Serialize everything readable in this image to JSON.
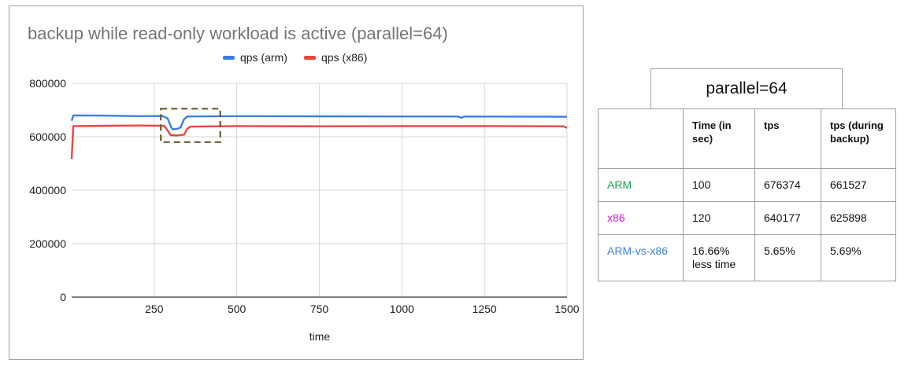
{
  "chart_data": {
    "type": "line",
    "title": "backup while read-only workload is active (parallel=64)",
    "xlabel": "time",
    "ylabel": "",
    "xlim": [
      0,
      1500
    ],
    "ylim": [
      0,
      800000
    ],
    "x_ticks": [
      250,
      500,
      750,
      1000,
      1250,
      1500
    ],
    "y_ticks": [
      0,
      200000,
      400000,
      600000,
      800000
    ],
    "x_tick_labels": [
      "250",
      "500",
      "750",
      "1000",
      "1250",
      "1500"
    ],
    "y_tick_labels": [
      "0",
      "200000",
      "400000",
      "600000",
      "800000"
    ],
    "grid": true,
    "legend": "top-center",
    "series": [
      {
        "name": "qps (arm)",
        "color": "#3b7fe0",
        "points": [
          [
            0,
            660000
          ],
          [
            5,
            680000
          ],
          [
            100,
            679000
          ],
          [
            200,
            677000
          ],
          [
            275,
            677500
          ],
          [
            285,
            672000
          ],
          [
            290,
            670000
          ],
          [
            300,
            640000
          ],
          [
            305,
            628000
          ],
          [
            320,
            630000
          ],
          [
            330,
            635000
          ],
          [
            340,
            665000
          ],
          [
            350,
            676000
          ],
          [
            500,
            677000
          ],
          [
            750,
            676500
          ],
          [
            1000,
            676000
          ],
          [
            1170,
            676000
          ],
          [
            1180,
            671000
          ],
          [
            1190,
            676000
          ],
          [
            1250,
            675500
          ],
          [
            1500,
            675000
          ]
        ]
      },
      {
        "name": "qps (x86)",
        "color": "#e8463c",
        "points": [
          [
            0,
            517000
          ],
          [
            5,
            640000
          ],
          [
            100,
            641000
          ],
          [
            200,
            642000
          ],
          [
            280,
            641000
          ],
          [
            290,
            625000
          ],
          [
            300,
            606000
          ],
          [
            320,
            605000
          ],
          [
            340,
            608000
          ],
          [
            350,
            630000
          ],
          [
            360,
            638000
          ],
          [
            500,
            640000
          ],
          [
            750,
            639000
          ],
          [
            1000,
            640000
          ],
          [
            1250,
            640000
          ],
          [
            1490,
            639000
          ],
          [
            1500,
            633000
          ]
        ]
      }
    ],
    "annotations": [
      {
        "type": "dashed-box",
        "x": [
          270,
          450
        ],
        "y": [
          580000,
          705000
        ],
        "color": "#6b5a2e"
      }
    ]
  },
  "table": {
    "caption": "parallel=64",
    "headers": [
      "",
      "Time (in sec)",
      "tps",
      "tps (during backup)"
    ],
    "rows": [
      {
        "label": "ARM",
        "time": "100",
        "tps": "676374",
        "tps_backup": "661527"
      },
      {
        "label": "x86",
        "time": "120",
        "tps": "640177",
        "tps_backup": "625898"
      },
      {
        "label": "ARM-vs-x86",
        "time": "16.66% less time",
        "tps": "5.65%",
        "tps_backup": "5.69%"
      }
    ]
  }
}
